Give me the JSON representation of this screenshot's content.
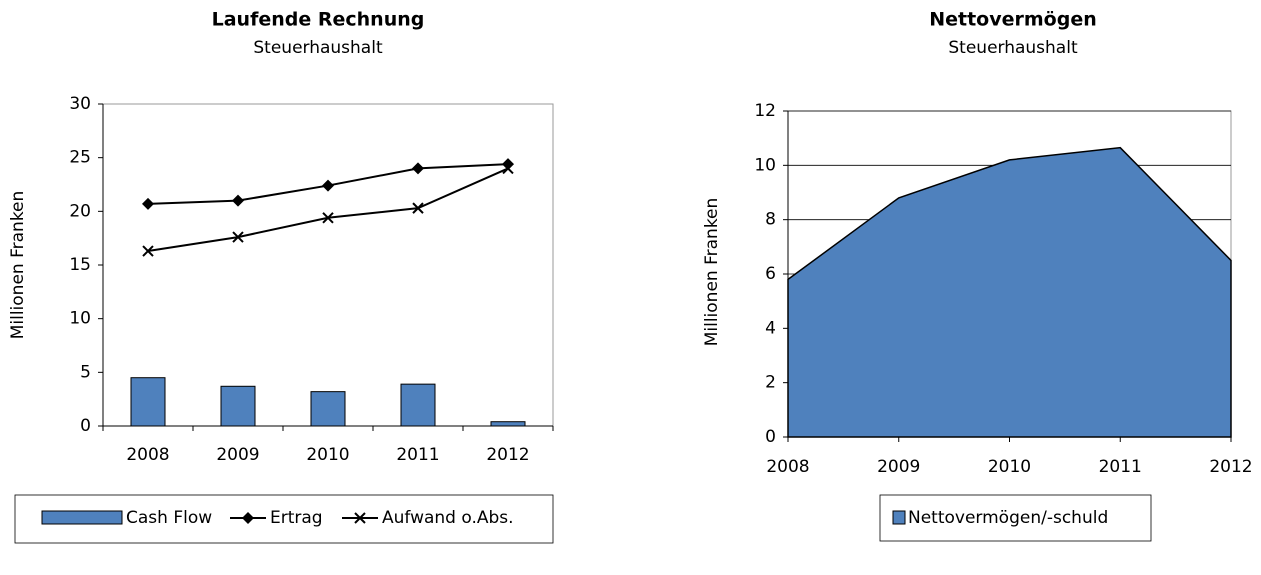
{
  "chart_data": [
    {
      "type": "bar_line",
      "title": "Laufende Rechnung",
      "subtitle": "Steuerhaushalt",
      "y_label": "Millionen Franken",
      "categories": [
        "2008",
        "2009",
        "2010",
        "2011",
        "2012"
      ],
      "series": [
        {
          "name": "Cash Flow",
          "kind": "bar",
          "color": "#4f81bd",
          "values": [
            4.5,
            3.7,
            3.2,
            3.9,
            0.4
          ]
        },
        {
          "name": "Ertrag",
          "kind": "line",
          "marker": "diamond",
          "color": "#000000",
          "values": [
            20.7,
            21.0,
            22.4,
            24.0,
            24.4
          ]
        },
        {
          "name": "Aufwand o.Abs.",
          "kind": "line",
          "marker": "x",
          "color": "#000000",
          "values": [
            16.3,
            17.6,
            19.4,
            20.3,
            24.0
          ]
        }
      ],
      "ylim": [
        0,
        30
      ],
      "yticks": [
        0,
        5,
        10,
        15,
        20,
        25,
        30
      ],
      "grid": false
    },
    {
      "type": "area",
      "title": "Nettovermögen",
      "subtitle": "Steuerhaushalt",
      "y_label": "Millionen Franken",
      "categories": [
        "2008",
        "2009",
        "2010",
        "2011",
        "2012"
      ],
      "series": [
        {
          "name": "Nettovermögen/-schuld",
          "color": "#4f81bd",
          "values": [
            5.8,
            8.8,
            10.2,
            10.65,
            6.5
          ]
        }
      ],
      "ylim": [
        0,
        12
      ],
      "yticks": [
        0,
        2,
        4,
        6,
        8,
        10,
        12
      ],
      "grid": true
    }
  ]
}
